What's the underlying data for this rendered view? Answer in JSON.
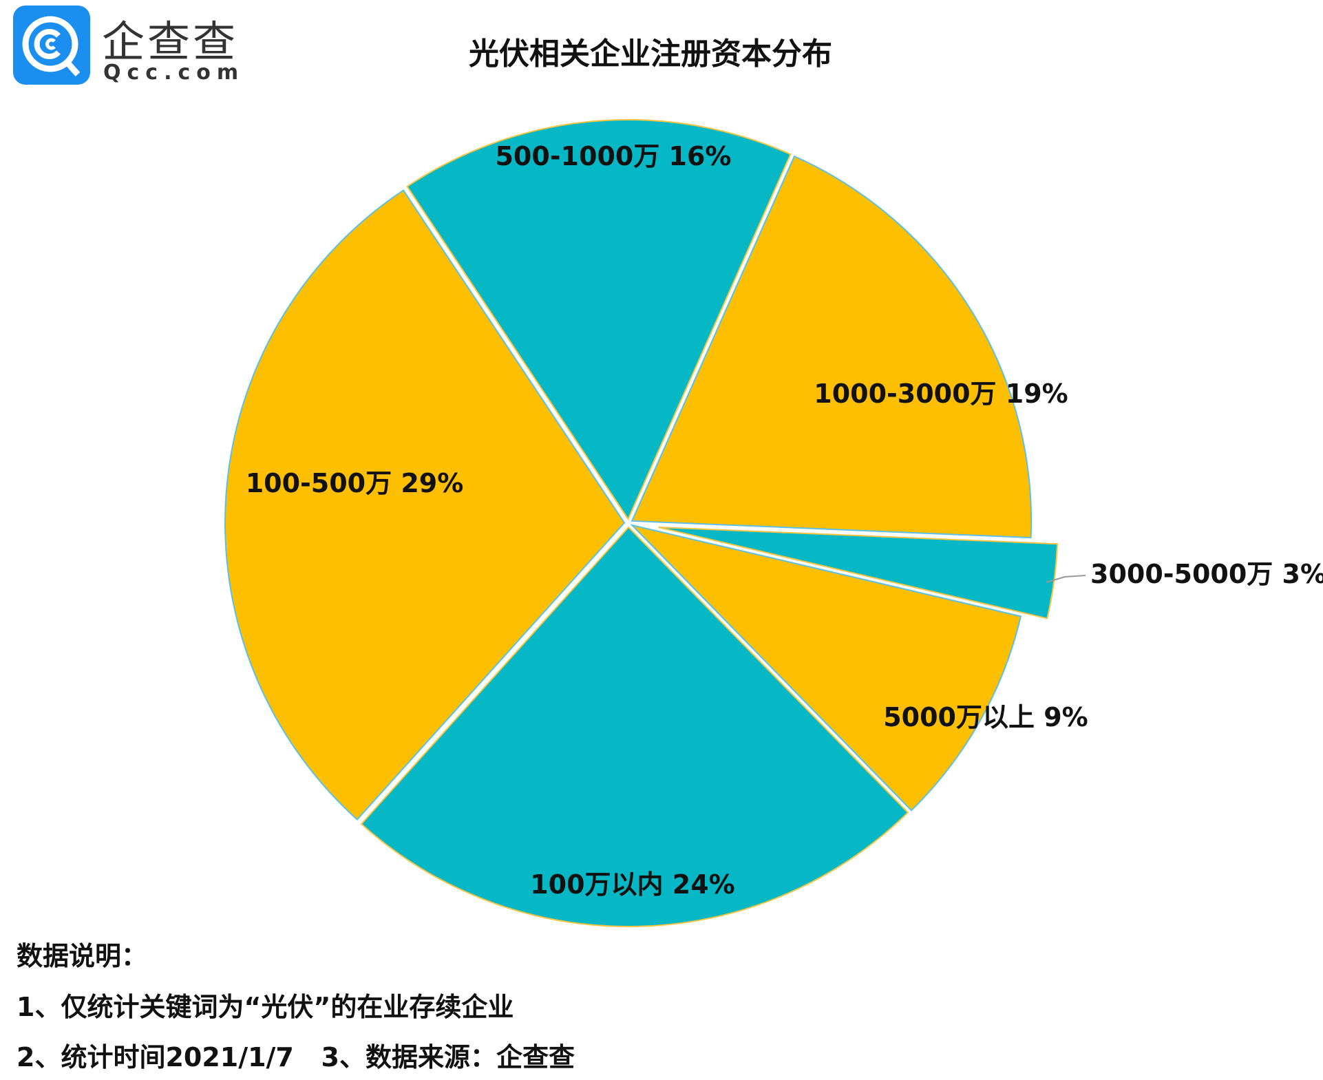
{
  "logo": {
    "text": "企查查",
    "domain": "Qcc.com",
    "color": "#1a8fef"
  },
  "title": "光伏相关企业注册资本分布",
  "chart_data": {
    "type": "pie",
    "title": "光伏相关企业注册资本分布",
    "slices": [
      {
        "label": "1000-3000万 19%",
        "category": "1000-3000万",
        "value": 19,
        "color": "#FDBF00"
      },
      {
        "label": "3000-5000万 3%",
        "category": "3000-5000万",
        "value": 3,
        "color": "#06B8C6",
        "exploded": true
      },
      {
        "label": "5000万以上 9%",
        "category": "5000万以上",
        "value": 9,
        "color": "#FDBF00"
      },
      {
        "label": "100万以内 24%",
        "category": "100万以内",
        "value": 24,
        "color": "#06B8C6"
      },
      {
        "label": "100-500万 29%",
        "category": "100-500万",
        "value": 29,
        "color": "#FDBF00"
      },
      {
        "label": "500-1000万 16%",
        "category": "500-1000万",
        "value": 16,
        "color": "#06B8C6"
      }
    ]
  },
  "notes": {
    "heading": "数据说明：",
    "line1": "1、仅统计关键词为“光伏”的在业存续企业",
    "line2": "2、统计时间2021/1/7   3、数据来源：企查查"
  }
}
